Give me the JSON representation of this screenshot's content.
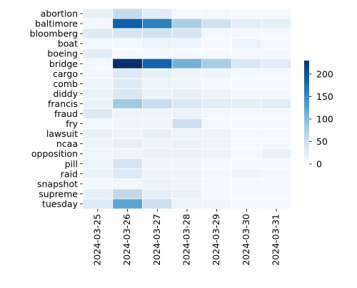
{
  "chart_data": {
    "type": "heatmap",
    "title": "",
    "xlabel": "",
    "ylabel": "",
    "x_categories": [
      "2024-03-25",
      "2024-03-26",
      "2024-03-27",
      "2024-03-28",
      "2024-03-29",
      "2024-03-30",
      "2024-03-31"
    ],
    "y_categories": [
      "abortion",
      "baltimore",
      "bloomberg",
      "boat",
      "boeing",
      "bridge",
      "cargo",
      "comb",
      "diddy",
      "francis",
      "fraud",
      "fry",
      "lawsuit",
      "ncaa",
      "opposition",
      "pill",
      "raid",
      "snapshot",
      "supreme",
      "tuesday"
    ],
    "values": [
      [
        20,
        60,
        25,
        5,
        5,
        5,
        5
      ],
      [
        5,
        190,
        160,
        80,
        45,
        25,
        20
      ],
      [
        30,
        40,
        45,
        40,
        5,
        5,
        5
      ],
      [
        5,
        5,
        15,
        10,
        5,
        15,
        5
      ],
      [
        25,
        5,
        5,
        5,
        5,
        5,
        5
      ],
      [
        5,
        230,
        185,
        110,
        80,
        35,
        25
      ],
      [
        5,
        30,
        20,
        10,
        10,
        5,
        5
      ],
      [
        15,
        30,
        15,
        10,
        5,
        5,
        5
      ],
      [
        15,
        35,
        15,
        20,
        10,
        5,
        5
      ],
      [
        15,
        85,
        55,
        35,
        25,
        20,
        25
      ],
      [
        30,
        10,
        10,
        15,
        5,
        5,
        5
      ],
      [
        5,
        10,
        10,
        50,
        5,
        5,
        5
      ],
      [
        15,
        10,
        20,
        15,
        10,
        5,
        5
      ],
      [
        10,
        20,
        10,
        15,
        10,
        5,
        5
      ],
      [
        10,
        10,
        15,
        15,
        10,
        5,
        15
      ],
      [
        15,
        40,
        10,
        10,
        5,
        5,
        5
      ],
      [
        15,
        30,
        10,
        10,
        5,
        10,
        5
      ],
      [
        5,
        5,
        15,
        10,
        5,
        5,
        5
      ],
      [
        20,
        60,
        20,
        15,
        5,
        5,
        5
      ],
      [
        30,
        125,
        50,
        15,
        10,
        5,
        5
      ]
    ],
    "vmin": 0,
    "vmax": 230,
    "colormap": "Blues",
    "colorbar_ticks": [
      0,
      50,
      100,
      150,
      200
    ],
    "colorbar_tick_labels": [
      "0",
      "50",
      "100",
      "150",
      "200"
    ]
  }
}
